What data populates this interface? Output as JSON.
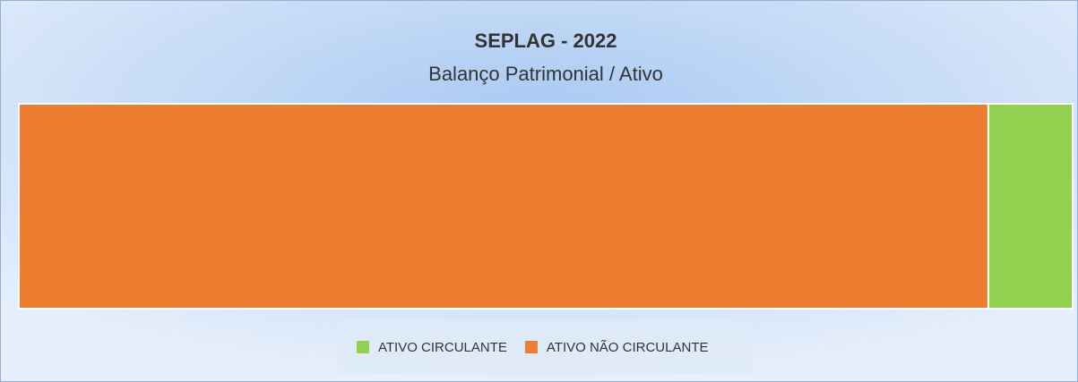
{
  "chart_data": {
    "type": "bar",
    "orientation": "horizontal",
    "stacked": "percent",
    "title": "SEPLAG - 2022",
    "subtitle": "Balanço Patrimonial / Ativo",
    "series": [
      {
        "name": "ATIVO CIRCULANTE",
        "color": "#92d050",
        "values": [
          8
        ]
      },
      {
        "name": "ATIVO NÃO CIRCULANTE",
        "color": "#ed7d31",
        "values": [
          92
        ]
      }
    ],
    "legend": "bottom"
  }
}
